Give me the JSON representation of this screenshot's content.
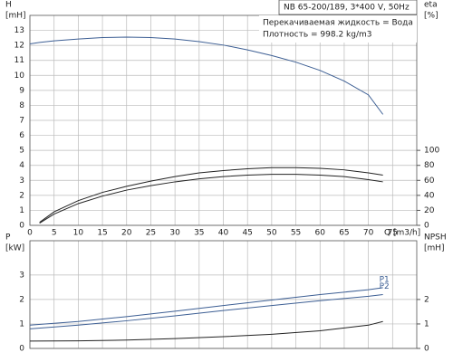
{
  "chart_data": [
    {
      "type": "line",
      "header": "NB 65-200/189, 3*400 V, 50Hz",
      "notes": [
        "Перекачиваемая жидкость = Вода",
        "Плотность = 998.2 kg/m3"
      ],
      "ylabel": [
        "H",
        "[mH]"
      ],
      "y2label": [
        "eta",
        "[%]"
      ],
      "xlabel": "Q [m3/h]",
      "xlim": [
        0,
        80
      ],
      "xticks": [
        0,
        5,
        10,
        15,
        20,
        25,
        30,
        35,
        40,
        45,
        50,
        55,
        60,
        65,
        70,
        75
      ],
      "ylim": [
        0,
        14
      ],
      "yticks": [
        0,
        1,
        2,
        3,
        4,
        5,
        6,
        7,
        8,
        9,
        10,
        11,
        12,
        13
      ],
      "y2lim": [
        0,
        280
      ],
      "y2ticks": [
        0,
        20,
        40,
        60,
        80,
        100
      ],
      "grid": true,
      "x": [
        0,
        2,
        5,
        10,
        15,
        20,
        25,
        30,
        35,
        40,
        45,
        50,
        55,
        60,
        65,
        70,
        73
      ],
      "series": [
        {
          "color": "#3d5f94",
          "values": [
            12.1,
            12.2,
            12.3,
            12.42,
            12.52,
            12.55,
            12.52,
            12.42,
            12.25,
            12.02,
            11.7,
            11.32,
            10.88,
            10.33,
            9.62,
            8.7,
            7.4
          ]
        },
        {
          "color": "#222222",
          "axis": "y2",
          "values": [
            null,
            4,
            18,
            33,
            44,
            52,
            59,
            65,
            70,
            73,
            75.5,
            77,
            77,
            76,
            74,
            70,
            67
          ]
        },
        {
          "color": "#222222",
          "axis": "y2",
          "values": [
            null,
            3,
            15,
            29,
            39,
            47,
            53,
            58,
            62,
            65,
            67,
            68,
            68,
            67,
            65,
            61,
            58
          ]
        }
      ]
    },
    {
      "type": "line",
      "ylabel": [
        "P",
        "[kW]"
      ],
      "y2label": [
        "NPSH",
        "[mH]"
      ],
      "xlim": [
        0,
        80
      ],
      "ylim": [
        0,
        4.4
      ],
      "yticks": [
        0,
        1,
        2,
        3
      ],
      "y2lim": [
        0,
        4.4
      ],
      "y2ticks": [
        0,
        1,
        2
      ],
      "grid": true,
      "x": [
        0,
        10,
        20,
        30,
        40,
        50,
        60,
        70,
        73
      ],
      "series": [
        {
          "name": "P1",
          "color": "#3d5f94",
          "values": [
            0.95,
            1.1,
            1.3,
            1.52,
            1.75,
            1.98,
            2.2,
            2.4,
            2.48
          ]
        },
        {
          "name": "P2",
          "color": "#3d5f94",
          "values": [
            0.8,
            0.95,
            1.13,
            1.33,
            1.55,
            1.75,
            1.95,
            2.13,
            2.2
          ]
        },
        {
          "color": "#222222",
          "axis": "y2",
          "values": [
            0.3,
            0.31,
            0.34,
            0.4,
            0.48,
            0.58,
            0.72,
            0.95,
            1.1
          ]
        }
      ]
    }
  ]
}
